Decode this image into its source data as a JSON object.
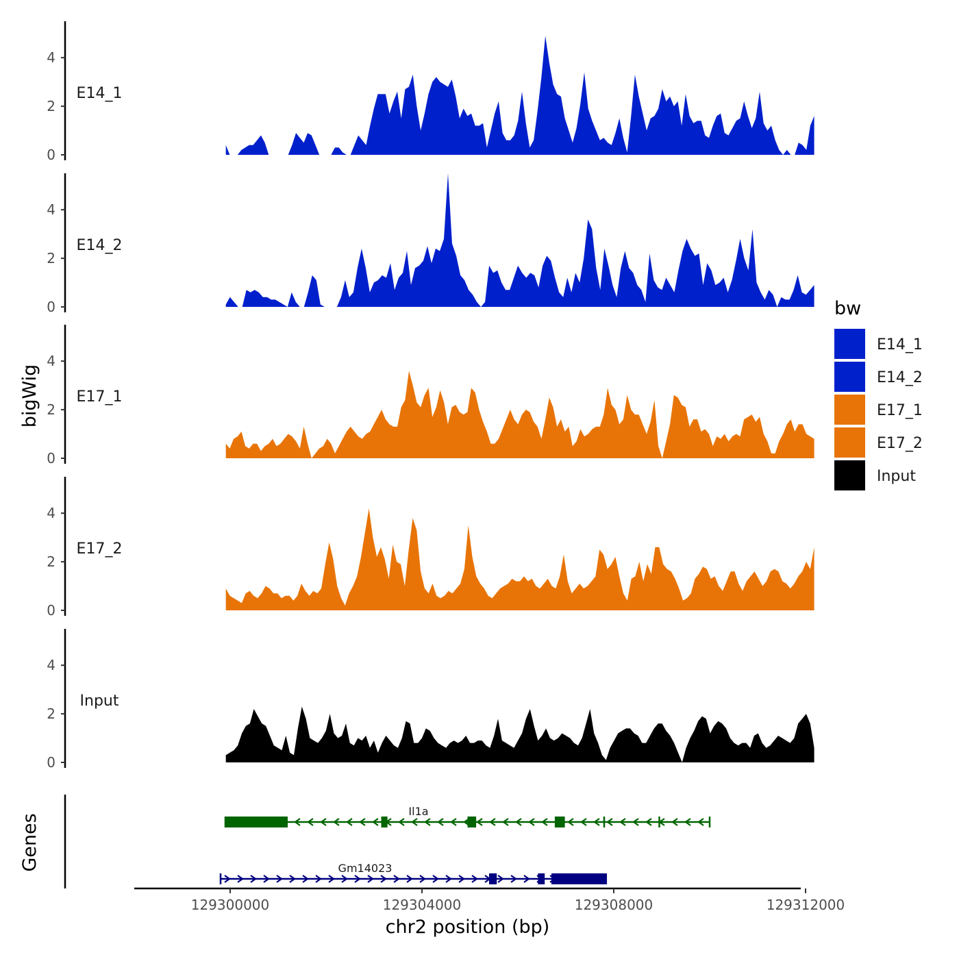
{
  "chart_data": {
    "type": "area",
    "title": "",
    "xlabel": "chr2 position (bp)",
    "ylabel": "bigWig",
    "genes_track_label": "Genes",
    "chromosome": "chr2",
    "xlim": [
      129298000,
      129311900
    ],
    "ylim": [
      0,
      5.5
    ],
    "x_ticks": [
      129300000,
      129304000,
      129308000,
      129312000
    ],
    "x_tick_labels": [
      "129300000",
      "129304000",
      "129308000",
      "129312000"
    ],
    "y_ticks": [
      0,
      2,
      4
    ],
    "y_tick_labels": [
      "0",
      "2",
      "4"
    ],
    "x_start": 129299910,
    "x_end": 129312180,
    "legend": {
      "title": "bw",
      "position": "right",
      "entries": [
        {
          "label": "E14_1",
          "color": "#0020CC"
        },
        {
          "label": "E14_2",
          "color": "#0020CC"
        },
        {
          "label": "E17_1",
          "color": "#E87407"
        },
        {
          "label": "E17_2",
          "color": "#E87407"
        },
        {
          "label": "Input",
          "color": "#000000"
        }
      ]
    },
    "series": [
      {
        "name": "E14_1",
        "color": "#0020CC",
        "values": [
          0.4,
          0,
          0,
          0,
          0.2,
          0.3,
          0.4,
          0.4,
          0.6,
          0.8,
          0.5,
          0,
          0,
          0,
          0,
          0,
          0,
          0.4,
          0.9,
          0.7,
          0.5,
          0.9,
          0.8,
          0.4,
          0,
          0,
          0,
          0,
          0.3,
          0.3,
          0.1,
          0,
          0,
          0.4,
          0.8,
          0.6,
          0.4,
          1.2,
          1.9,
          2.5,
          2.5,
          2.5,
          1.7,
          2.2,
          2.6,
          1.5,
          2.7,
          2.8,
          3.3,
          2.0,
          1.0,
          1.7,
          2.5,
          3.0,
          3.2,
          3.0,
          2.9,
          2.8,
          3.1,
          2.4,
          1.5,
          1.9,
          1.6,
          1.7,
          1.2,
          1.2,
          1.3,
          0.3,
          1.0,
          1.7,
          2.2,
          0.9,
          0.6,
          0.6,
          0.8,
          1.4,
          2.6,
          1.3,
          0.3,
          0.6,
          1.8,
          3.2,
          4.9,
          3.8,
          2.9,
          2.5,
          2.4,
          1.5,
          1.0,
          0.5,
          1.1,
          2.1,
          3.4,
          1.9,
          1.4,
          1.0,
          0.6,
          0.7,
          0.5,
          0.4,
          0.9,
          1.5,
          0.7,
          0.1,
          1.6,
          3.3,
          2.4,
          1.7,
          1.0,
          1.5,
          1.6,
          1.9,
          2.7,
          2.2,
          2.4,
          2.0,
          2.2,
          1.2,
          2.5,
          1.6,
          1.3,
          1.4,
          1.4,
          0.8,
          0.7,
          1.2,
          1.6,
          1.7,
          0.9,
          0.8,
          1.1,
          1.4,
          1.5,
          2.2,
          1.6,
          1.1,
          1.5,
          2.6,
          1.3,
          1.0,
          1.2,
          0.6,
          0.2,
          0,
          0.2,
          0,
          0,
          0.5,
          0.4,
          0.2,
          1.2,
          1.6
        ]
      },
      {
        "name": "E14_2",
        "color": "#0020CC",
        "values": [
          0.1,
          0.4,
          0.2,
          0,
          0,
          0.7,
          0.6,
          0.7,
          0.6,
          0.4,
          0.4,
          0.3,
          0.3,
          0.2,
          0.1,
          0,
          0.6,
          0.2,
          0,
          0,
          0.6,
          1.3,
          1.1,
          0.1,
          0,
          0,
          0,
          0,
          0.4,
          1.1,
          0.4,
          0.6,
          1.6,
          2.4,
          1.6,
          0.6,
          1.0,
          1.1,
          1.3,
          1.2,
          1.8,
          0.7,
          1.2,
          1.4,
          2.3,
          0.9,
          1.6,
          1.7,
          1.9,
          2.5,
          1.8,
          2.4,
          2.3,
          2.8,
          5.5,
          2.6,
          2.1,
          1.3,
          1.1,
          0.7,
          0.5,
          0.2,
          0,
          0.2,
          1.7,
          1.4,
          1.5,
          1.0,
          0.7,
          0.7,
          1.2,
          1.7,
          1.4,
          1.2,
          1.4,
          1.3,
          0.8,
          1.7,
          2.1,
          1.9,
          1.2,
          0.6,
          0.4,
          1.2,
          0.6,
          1.4,
          1.0,
          2.0,
          3.6,
          3.2,
          1.6,
          0.7,
          2.4,
          1.7,
          0.9,
          0.4,
          1.6,
          2.3,
          1.6,
          1.4,
          0.9,
          0.7,
          0.2,
          2.2,
          1.1,
          0.8,
          0.7,
          1.2,
          0.9,
          0.6,
          1.5,
          2.3,
          2.8,
          2.4,
          2.1,
          2.2,
          0.9,
          1.8,
          1.5,
          0.9,
          1.0,
          1.2,
          0.6,
          1.1,
          1.9,
          2.8,
          2.0,
          1.5,
          3.2,
          1.0,
          0.6,
          0.3,
          0.7,
          0.5,
          0,
          0.4,
          0.3,
          0.3,
          0.7,
          1.3,
          0.6,
          0.5,
          0.7,
          0.9
        ]
      },
      {
        "name": "E17_1",
        "color": "#E87407",
        "values": [
          0.6,
          0.4,
          0.8,
          0.9,
          1.1,
          0.5,
          0.4,
          0.6,
          0.6,
          0.3,
          0.5,
          0.6,
          0.8,
          0.5,
          0.6,
          0.8,
          1.0,
          0.9,
          0.7,
          0.4,
          1.3,
          0.6,
          0,
          0.2,
          0.4,
          0.5,
          0.8,
          0.6,
          0.2,
          0.5,
          0.8,
          1.1,
          1.3,
          1.1,
          0.9,
          0.8,
          1.0,
          1.1,
          1.4,
          1.7,
          2.0,
          1.6,
          1.4,
          1.3,
          1.3,
          2.1,
          2.4,
          3.6,
          3.0,
          2.3,
          2.1,
          2.6,
          2.9,
          1.7,
          2.1,
          2.8,
          2.3,
          1.4,
          2.1,
          2.2,
          1.9,
          1.8,
          1.9,
          2.9,
          2.7,
          2.0,
          1.5,
          1.1,
          0.6,
          0.6,
          0.8,
          1.2,
          1.6,
          2.0,
          1.6,
          1.4,
          1.8,
          2.0,
          1.9,
          1.5,
          1.3,
          0.8,
          1.6,
          2.5,
          2.1,
          1.3,
          1.6,
          1.1,
          1.3,
          0.5,
          0.7,
          1.2,
          0.9,
          1.0,
          1.2,
          1.3,
          1.3,
          1.8,
          2.9,
          2.2,
          2.0,
          1.4,
          1.6,
          2.6,
          2.0,
          1.8,
          1.8,
          1.4,
          1.0,
          1.5,
          2.4,
          0.5,
          0,
          0.7,
          1.4,
          2.6,
          2.5,
          2.2,
          2.1,
          1.3,
          1.6,
          1.6,
          1.1,
          1.2,
          1.0,
          0.5,
          0.9,
          0.8,
          1.0,
          0.7,
          0.9,
          1.0,
          0.9,
          1.6,
          1.7,
          1.8,
          1.5,
          1.7,
          1.0,
          0.7,
          0.2,
          0.2,
          0.7,
          1.0,
          1.4,
          1.6,
          1.1,
          1.4,
          1.4,
          1.0,
          0.9,
          0.8
        ]
      },
      {
        "name": "E17_2",
        "color": "#E87407",
        "values": [
          0.9,
          0.6,
          0.5,
          0.4,
          0.3,
          0.7,
          0.8,
          0.6,
          0.5,
          0.7,
          1.0,
          0.9,
          0.7,
          0.7,
          0.5,
          0.6,
          0.6,
          0.4,
          0.6,
          1.1,
          0.8,
          0.6,
          0.8,
          0.7,
          0.9,
          1.9,
          2.8,
          2.1,
          1.0,
          0.5,
          0.2,
          0.7,
          1.0,
          1.4,
          2.2,
          3.2,
          4.2,
          3.0,
          2.2,
          2.6,
          2.1,
          1.3,
          2.7,
          2.0,
          1.9,
          1.0,
          2.5,
          3.8,
          3.3,
          1.6,
          0.9,
          0.7,
          1.1,
          0.6,
          0.5,
          0.6,
          0.8,
          0.7,
          0.9,
          1.1,
          1.7,
          3.5,
          2.2,
          1.4,
          1.1,
          0.9,
          0.6,
          0.5,
          0.7,
          0.9,
          1.0,
          1.1,
          1.3,
          1.2,
          1.2,
          1.4,
          1.2,
          1.3,
          1.0,
          0.9,
          1.1,
          1.3,
          1.0,
          0.9,
          1.4,
          2.3,
          1.2,
          0.7,
          0.9,
          1.1,
          0.9,
          1.0,
          1.2,
          1.4,
          2.5,
          2.3,
          1.7,
          1.9,
          2.2,
          1.4,
          0.7,
          0.4,
          1.3,
          1.4,
          2.0,
          1.2,
          1.9,
          1.5,
          2.6,
          2.6,
          1.9,
          1.7,
          1.6,
          1.3,
          0.9,
          0.4,
          0.5,
          0.7,
          1.3,
          1.5,
          1.8,
          1.7,
          1.3,
          1.4,
          1.0,
          0.8,
          1.2,
          1.6,
          1.6,
          1.1,
          0.8,
          1.2,
          1.4,
          1.6,
          1.3,
          1.0,
          1.2,
          1.6,
          1.7,
          1.6,
          1.2,
          1.1,
          0.9,
          1.1,
          1.4,
          1.6,
          2.0,
          1.7,
          2.6
        ]
      },
      {
        "name": "Input",
        "color": "#000000",
        "values": [
          0.3,
          0.4,
          0.5,
          0.7,
          1.2,
          1.5,
          1.6,
          2.2,
          1.9,
          1.6,
          1.5,
          1.1,
          0.7,
          0.6,
          0.5,
          1.1,
          0.4,
          0.3,
          1.4,
          2.3,
          1.8,
          1.0,
          0.9,
          0.8,
          1.0,
          1.3,
          2.0,
          1.2,
          1.0,
          1.1,
          1.6,
          0.8,
          0.7,
          1.0,
          0.9,
          1.1,
          0.6,
          0.9,
          0.4,
          0.8,
          1.1,
          0.9,
          0.7,
          0.6,
          1.0,
          1.7,
          1.6,
          0.8,
          0.8,
          1.0,
          1.4,
          1.3,
          1.0,
          0.8,
          0.7,
          0.6,
          0.8,
          0.9,
          0.8,
          0.9,
          1.1,
          0.8,
          0.8,
          0.9,
          0.9,
          0.7,
          0.6,
          1.1,
          1.8,
          0.9,
          0.8,
          0.7,
          0.6,
          0.9,
          1.2,
          1.8,
          2.2,
          1.5,
          0.9,
          1.1,
          1.4,
          1.0,
          0.9,
          1.0,
          1.2,
          1.1,
          1.0,
          0.8,
          0.7,
          1.0,
          1.6,
          2.2,
          1.2,
          0.8,
          0.3,
          0.1,
          0.6,
          0.9,
          1.2,
          1.3,
          1.4,
          1.4,
          1.2,
          1.1,
          0.8,
          0.8,
          1.1,
          1.4,
          1.6,
          1.6,
          1.3,
          1.1,
          0.8,
          0.4,
          0,
          0.6,
          1.0,
          1.3,
          1.7,
          1.9,
          1.8,
          1.2,
          1.5,
          1.7,
          1.6,
          1.4,
          1.0,
          0.8,
          0.7,
          0.8,
          0.8,
          0.6,
          1.1,
          1.2,
          0.8,
          0.6,
          0.7,
          0.9,
          1.1,
          1.0,
          0.9,
          0.8,
          1.0,
          1.6,
          1.8,
          2.0,
          1.6,
          0.6
        ]
      }
    ],
    "genes": [
      {
        "name": "Il1a",
        "strand": "-",
        "color": "#006400",
        "start": 129299900,
        "end": 129310000,
        "exons": [
          [
            129299900,
            129301200
          ],
          [
            129303150,
            129303280
          ],
          [
            129304950,
            129305130
          ],
          [
            129306770,
            129306980
          ]
        ],
        "tick_marks": [
          129307800,
          129308950
        ]
      },
      {
        "name": "Gm14023",
        "strand": "+",
        "color": "#000080",
        "start": 129299800,
        "end": 129307840,
        "exons": [
          [
            129305400,
            129305560
          ],
          [
            129306420,
            129306560
          ],
          [
            129306700,
            129307840
          ]
        ]
      }
    ]
  }
}
